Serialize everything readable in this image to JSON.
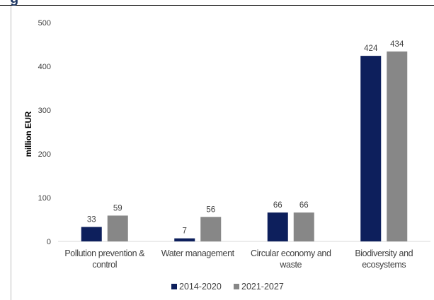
{
  "heading_fragment": "g",
  "chart_data": {
    "type": "bar",
    "categories": [
      [
        "Pollution prevention &",
        "control"
      ],
      [
        "Water management"
      ],
      [
        "Circular economy and",
        "waste"
      ],
      [
        "Biodiversity and",
        "ecosystems"
      ]
    ],
    "series": [
      {
        "name": "2014-2020",
        "values": [
          33,
          7,
          66,
          424
        ],
        "color": "#0d1f5c"
      },
      {
        "name": "2021-2027",
        "values": [
          59,
          56,
          66,
          434
        ],
        "color": "#878787"
      }
    ],
    "ylabel": "million EUR",
    "xlabel": "",
    "ylim": [
      0,
      500
    ],
    "yticks": [
      0,
      100,
      200,
      300,
      400,
      500
    ],
    "grid": false,
    "legend": "bottom-center"
  }
}
